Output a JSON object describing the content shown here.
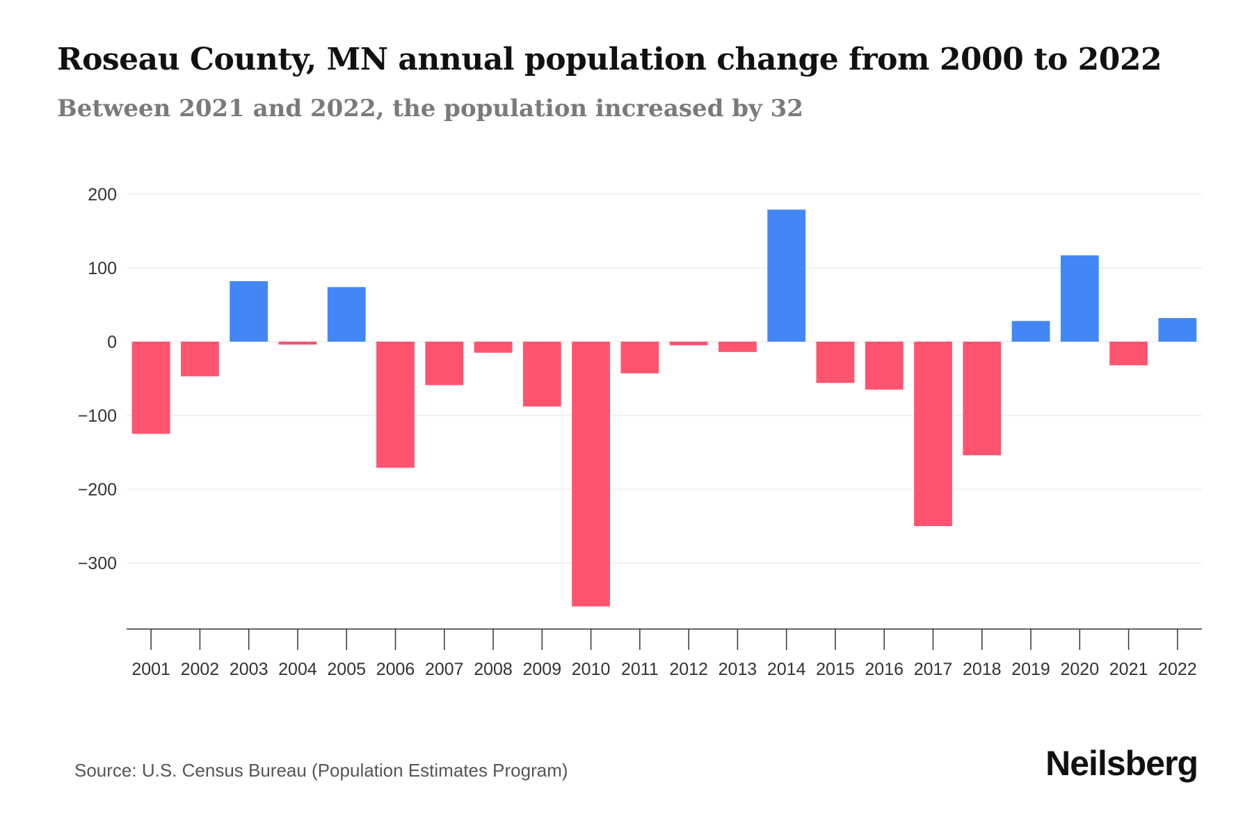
{
  "title": "Roseau County, MN annual population change from 2000 to 2022",
  "subtitle": "Between 2021 and 2022, the population increased by 32",
  "source": "Source: U.S. Census Bureau (Population Estimates Program)",
  "brand": "Neilsberg",
  "colors": {
    "positive": "#4287f5",
    "negative": "#ff5470",
    "gridline": "#eeeeee",
    "axis": "#333333"
  },
  "chart_data": {
    "type": "bar",
    "title": "Roseau County, MN annual population change from 2000 to 2022",
    "xlabel": "",
    "ylabel": "",
    "ylim": [
      -390,
      200
    ],
    "yticks": [
      200,
      100,
      0,
      -100,
      -200,
      -300
    ],
    "ytick_labels": [
      "200",
      "100",
      "0",
      "−100",
      "−200",
      "−300"
    ],
    "grid": true,
    "categories": [
      "2001",
      "2002",
      "2003",
      "2004",
      "2005",
      "2006",
      "2007",
      "2008",
      "2009",
      "2010",
      "2011",
      "2012",
      "2013",
      "2014",
      "2015",
      "2016",
      "2017",
      "2018",
      "2019",
      "2020",
      "2021",
      "2022"
    ],
    "values": [
      -125,
      -47,
      82,
      -4,
      74,
      -171,
      -59,
      -15,
      -88,
      -359,
      -43,
      -5,
      -14,
      179,
      -56,
      -65,
      -250,
      -154,
      28,
      117,
      -32,
      32
    ]
  }
}
